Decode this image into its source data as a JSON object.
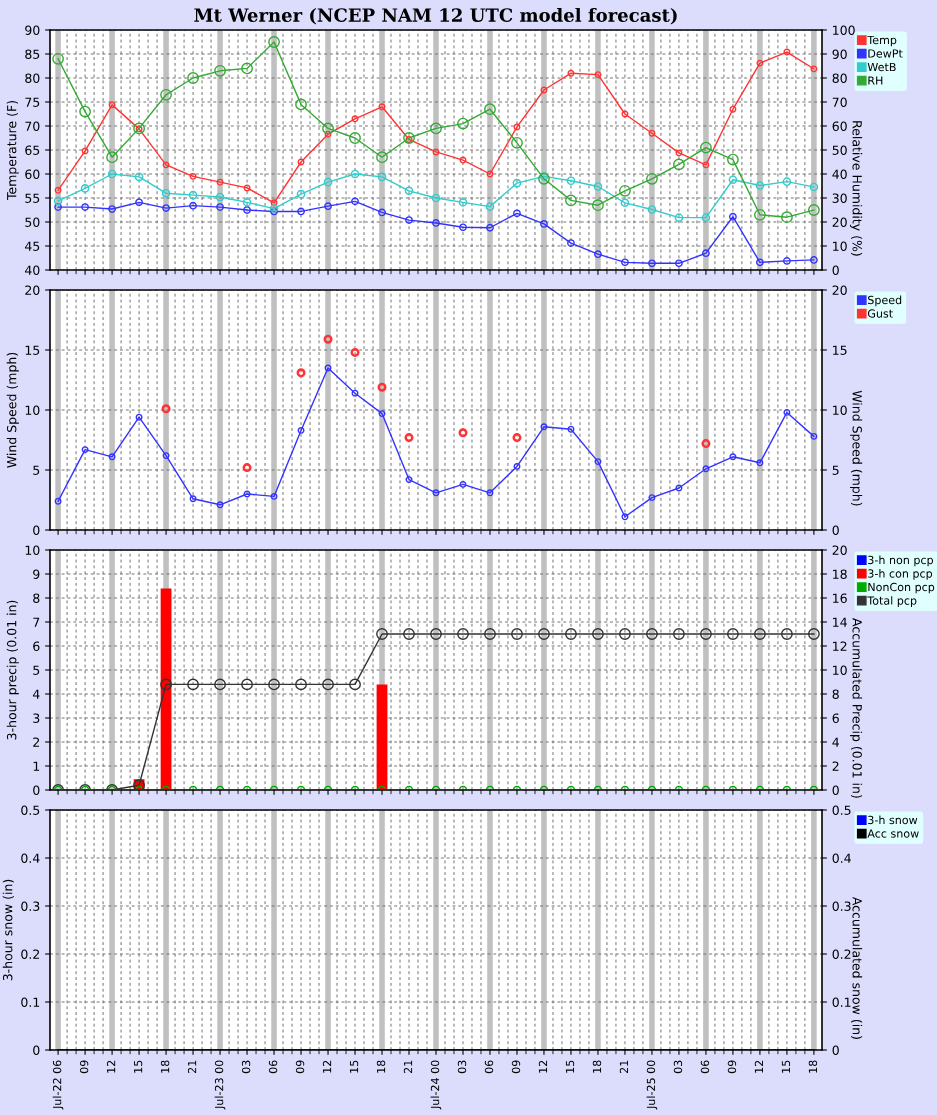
{
  "chart_data": [
    {
      "type": "line",
      "title": "Mt Werner (NCEP NAM 12 UTC model forecast)",
      "ylabel": "Temperature (F)",
      "y2label": "Relative Humidity (%)",
      "categories": [
        null,
        null,
        null,
        null,
        null,
        null,
        null,
        null,
        null,
        null,
        null,
        null,
        null,
        null,
        null,
        null,
        null,
        null,
        null,
        null,
        null,
        null,
        null,
        null,
        null,
        null,
        null,
        null,
        null
      ],
      "ylim": [
        40,
        90
      ],
      "yticks": [
        40,
        45,
        50,
        55,
        60,
        65,
        70,
        75,
        80,
        85,
        90
      ],
      "y2lim": [
        0,
        100
      ],
      "y2ticks": [
        0,
        10,
        20,
        30,
        40,
        50,
        60,
        70,
        80,
        90,
        100
      ],
      "grid": true,
      "legend": "right",
      "marker": "circle",
      "series": [
        {
          "name": "Temp",
          "color": "#ff3333",
          "values": [
            56.6,
            64.8,
            74.4,
            69.4,
            61.9,
            59.5,
            58.3,
            57.1,
            54.0,
            62.5,
            68.3,
            71.5,
            74.0,
            67.2,
            64.6,
            62.9,
            60.0,
            69.8,
            77.5,
            81.0,
            80.7,
            72.5,
            68.5,
            64.4,
            61.9,
            73.5,
            83.1,
            85.4,
            81.9
          ]
        },
        {
          "name": "DewPt",
          "color": "#3333ff",
          "values": [
            53.1,
            53.1,
            52.7,
            54.1,
            52.9,
            53.4,
            53.1,
            52.5,
            52.2,
            52.2,
            53.3,
            54.3,
            52.0,
            50.4,
            49.8,
            48.9,
            48.8,
            51.8,
            49.6,
            45.6,
            43.3,
            41.6,
            41.4,
            41.4,
            43.5,
            51.1,
            41.6,
            41.9,
            42.1
          ]
        },
        {
          "name": "WetB",
          "color": "#33cccc",
          "values": [
            54.4,
            57.0,
            60.0,
            59.4,
            56.0,
            55.6,
            55.2,
            54.1,
            52.8,
            55.8,
            58.3,
            60.0,
            59.4,
            56.5,
            55.0,
            54.1,
            53.2,
            58.1,
            59.5,
            58.6,
            57.4,
            54.0,
            52.6,
            50.9,
            50.9,
            58.8,
            57.6,
            58.4,
            57.3
          ]
        },
        {
          "name": "RH",
          "color": "#33aa33",
          "axis": "y2",
          "values": [
            88,
            66,
            47,
            59,
            73,
            80,
            83,
            84,
            95,
            69,
            59,
            55,
            47,
            55,
            59,
            61,
            67,
            53,
            38,
            29,
            27,
            33,
            38,
            44,
            51,
            46,
            23,
            22,
            25
          ]
        }
      ]
    },
    {
      "type": "line",
      "ylabel": "Wind Speed (mph)",
      "y2label": "Wind Speed (mph)",
      "categories": [
        null,
        null,
        null,
        null,
        null,
        null,
        null,
        null,
        null,
        null,
        null,
        null,
        null,
        null,
        null,
        null,
        null,
        null,
        null,
        null,
        null,
        null,
        null,
        null,
        null,
        null,
        null,
        null,
        null
      ],
      "ylim": [
        0,
        20
      ],
      "yticks": [
        0,
        5,
        10,
        15,
        20
      ],
      "y2lim": [
        0,
        20
      ],
      "y2ticks": [
        0,
        5,
        10,
        15,
        20
      ],
      "grid": true,
      "legend": "right",
      "marker": "circle",
      "series": [
        {
          "name": "Speed",
          "color": "#3333ff",
          "values": [
            2.4,
            6.7,
            6.1,
            9.4,
            6.2,
            2.6,
            2.1,
            3.0,
            2.8,
            8.3,
            13.5,
            11.4,
            9.7,
            4.2,
            3.1,
            3.8,
            3.1,
            5.3,
            8.6,
            8.4,
            5.7,
            1.1,
            2.7,
            3.5,
            5.1,
            6.1,
            5.6,
            9.8,
            7.8
          ]
        },
        {
          "name": "Gust",
          "color": "#ff3333",
          "type": "scatter",
          "values": [
            null,
            null,
            null,
            null,
            10.1,
            null,
            null,
            5.2,
            null,
            13.1,
            15.9,
            14.8,
            11.9,
            7.7,
            null,
            8.1,
            null,
            7.7,
            null,
            null,
            null,
            null,
            null,
            null,
            7.2,
            null,
            null,
            null,
            null
          ]
        }
      ]
    },
    {
      "type": "bar",
      "ylabel": "3-hour precip (0.01 in)",
      "y2label": "Accumulated Precip (0.01 in)",
      "categories": [
        null,
        null,
        null,
        null,
        null,
        null,
        null,
        null,
        null,
        null,
        null,
        null,
        null,
        null,
        null,
        null,
        null,
        null,
        null,
        null,
        null,
        null,
        null,
        null,
        null,
        null,
        null,
        null,
        null
      ],
      "ylim": [
        0,
        10
      ],
      "yticks": [
        0,
        1,
        2,
        3,
        4,
        5,
        6,
        7,
        8,
        9,
        10
      ],
      "y2lim": [
        0,
        20
      ],
      "y2ticks": [
        0,
        2,
        4,
        6,
        8,
        10,
        12,
        14,
        16,
        18,
        20
      ],
      "grid": true,
      "legend": "right",
      "marker": "circle",
      "series": [
        {
          "name": "3-h non pcp",
          "color": "#0000ff",
          "values": [
            0,
            0,
            0,
            0,
            0,
            0,
            0,
            0,
            0,
            0,
            0,
            0,
            0,
            0,
            0,
            0,
            0,
            0,
            0,
            0,
            0,
            0,
            0,
            0,
            0,
            0,
            0,
            0,
            0
          ]
        },
        {
          "name": "3-h con pcp",
          "color": "#ff0000",
          "values": [
            0,
            0,
            0,
            0.45,
            8.4,
            0,
            0,
            0,
            0,
            0,
            0,
            0,
            4.4,
            0,
            0,
            0,
            0,
            0,
            0,
            0,
            0,
            0,
            0,
            0,
            0,
            0,
            0,
            0,
            0
          ]
        },
        {
          "name": "NonCon pcp",
          "color": "#00aa00",
          "type": "line",
          "values": [
            0,
            0,
            0,
            0,
            0,
            0,
            0,
            0,
            0,
            0,
            0,
            0,
            0,
            0,
            0,
            0,
            0,
            0,
            0,
            0,
            0,
            0,
            0,
            0,
            0,
            0,
            0,
            0,
            0
          ]
        },
        {
          "name": "Total pcp",
          "color": "#333333",
          "type": "line",
          "axis": "y2",
          "values": [
            0,
            0,
            0,
            0.4,
            8.8,
            8.8,
            8.8,
            8.8,
            8.8,
            8.8,
            8.8,
            8.8,
            13.0,
            13.0,
            13.0,
            13.0,
            13.0,
            13.0,
            13.0,
            13.0,
            13.0,
            13.0,
            13.0,
            13.0,
            13.0,
            13.0,
            13.0,
            13.0,
            13.0
          ]
        }
      ]
    },
    {
      "type": "bar",
      "ylabel": "3-hour snow (in)",
      "y2label": "Accumulated snow (in)",
      "categories": [
        "Jul-22 06",
        "09",
        "12",
        "15",
        "18",
        "21",
        "Jul-23 00",
        "03",
        "06",
        "09",
        "12",
        "15",
        "18",
        "21",
        "Jul-24 00",
        "03",
        "06",
        "09",
        "12",
        "15",
        "18",
        "21",
        "Jul-25 00",
        "03",
        "06",
        "09",
        "12",
        "15",
        "18"
      ],
      "ylim": [
        0,
        0.5
      ],
      "yticks": [
        0,
        0.1,
        0.2,
        0.3,
        0.4,
        0.5
      ],
      "y2lim": [
        0,
        0.5
      ],
      "y2ticks": [
        0,
        0.1,
        0.2,
        0.3,
        0.4,
        0.5
      ],
      "grid": true,
      "legend": "right",
      "series": [
        {
          "name": "3-h snow",
          "color": "#0000ff",
          "values": [
            0,
            0,
            0,
            0,
            0,
            0,
            0,
            0,
            0,
            0,
            0,
            0,
            0,
            0,
            0,
            0,
            0,
            0,
            0,
            0,
            0,
            0,
            0,
            0,
            0,
            0,
            0,
            0,
            0
          ]
        },
        {
          "name": "Acc snow",
          "color": "#000000",
          "type": "line",
          "axis": "y2",
          "values": [
            0,
            0,
            0,
            0,
            0,
            0,
            0,
            0,
            0,
            0,
            0,
            0,
            0,
            0,
            0,
            0,
            0,
            0,
            0,
            0,
            0,
            0,
            0,
            0,
            0,
            0,
            0,
            0,
            0
          ]
        }
      ]
    }
  ]
}
